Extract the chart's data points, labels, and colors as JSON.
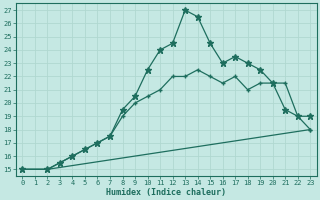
{
  "xlabel": "Humidex (Indice chaleur)",
  "xlim": [
    -0.5,
    23.5
  ],
  "ylim": [
    14.5,
    27.5
  ],
  "xticks": [
    0,
    1,
    2,
    3,
    4,
    5,
    6,
    7,
    8,
    9,
    10,
    11,
    12,
    13,
    14,
    15,
    16,
    17,
    18,
    19,
    20,
    21,
    22,
    23
  ],
  "yticks": [
    15,
    16,
    17,
    18,
    19,
    20,
    21,
    22,
    23,
    24,
    25,
    26,
    27
  ],
  "bg_color": "#c5e8e3",
  "line_color": "#1e6e5e",
  "grid_color": "#b0d8d0",
  "line3_x": [
    0,
    2,
    3,
    4,
    5,
    6,
    7,
    8,
    9,
    10,
    11,
    12,
    13,
    14,
    15,
    16,
    17,
    18,
    19,
    20,
    21,
    22,
    23
  ],
  "line3_y": [
    15,
    15,
    15.5,
    16,
    16.5,
    17,
    17.5,
    19.5,
    20.5,
    22.5,
    24,
    24.5,
    27,
    26.5,
    24.5,
    23,
    23.5,
    23,
    22.5,
    21.5,
    19.5,
    19,
    19
  ],
  "line2_x": [
    0,
    2,
    3,
    4,
    5,
    6,
    7,
    8,
    9,
    10,
    11,
    12,
    13,
    14,
    15,
    16,
    17,
    18,
    19,
    20,
    21,
    22,
    23
  ],
  "line2_y": [
    15,
    15,
    15.5,
    16,
    16.5,
    17,
    17.5,
    19,
    20,
    20.5,
    21,
    22,
    22,
    22.5,
    22,
    21.5,
    22,
    21,
    21.5,
    21.5,
    21.5,
    19,
    18
  ],
  "line1_x": [
    0,
    2,
    23
  ],
  "line1_y": [
    15,
    15,
    18
  ],
  "marker3": "*",
  "marker2": "+",
  "marker1": "+"
}
